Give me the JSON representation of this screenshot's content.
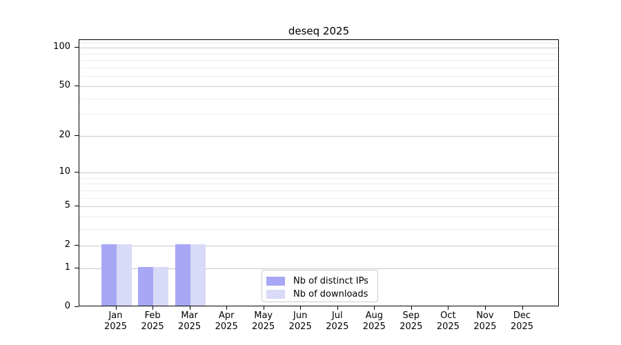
{
  "chart_data": {
    "type": "bar",
    "title": "deseq 2025",
    "categories": [
      "Jan 2025",
      "Feb 2025",
      "Mar 2025",
      "Apr 2025",
      "May 2025",
      "Jun 2025",
      "Jul 2025",
      "Aug 2025",
      "Sep 2025",
      "Oct 2025",
      "Nov 2025",
      "Dec 2025"
    ],
    "series": [
      {
        "name": "Nb of distinct IPs",
        "color": "#a7a7f5",
        "values": [
          2,
          1,
          2,
          0,
          0,
          0,
          0,
          0,
          0,
          0,
          0,
          0
        ]
      },
      {
        "name": "Nb of downloads",
        "color": "#d9d9f8",
        "values": [
          2,
          1,
          2,
          0,
          0,
          0,
          0,
          0,
          0,
          0,
          0,
          0
        ]
      }
    ],
    "xlabel": "",
    "ylabel": "",
    "y_scale": "log1p",
    "y_ticks": [
      0,
      1,
      2,
      5,
      10,
      20,
      50,
      100
    ],
    "y_minor_ticks": [
      3,
      4,
      6,
      7,
      8,
      9,
      30,
      40,
      60,
      70,
      80,
      90,
      110
    ],
    "ylim": [
      0,
      115
    ],
    "grid": true,
    "legend_position": "lower center inside",
    "colors": {
      "major_grid": "#c8c8c8",
      "minor_grid": "#ebebeb",
      "axis": "#000000",
      "background": "#ffffff"
    }
  }
}
